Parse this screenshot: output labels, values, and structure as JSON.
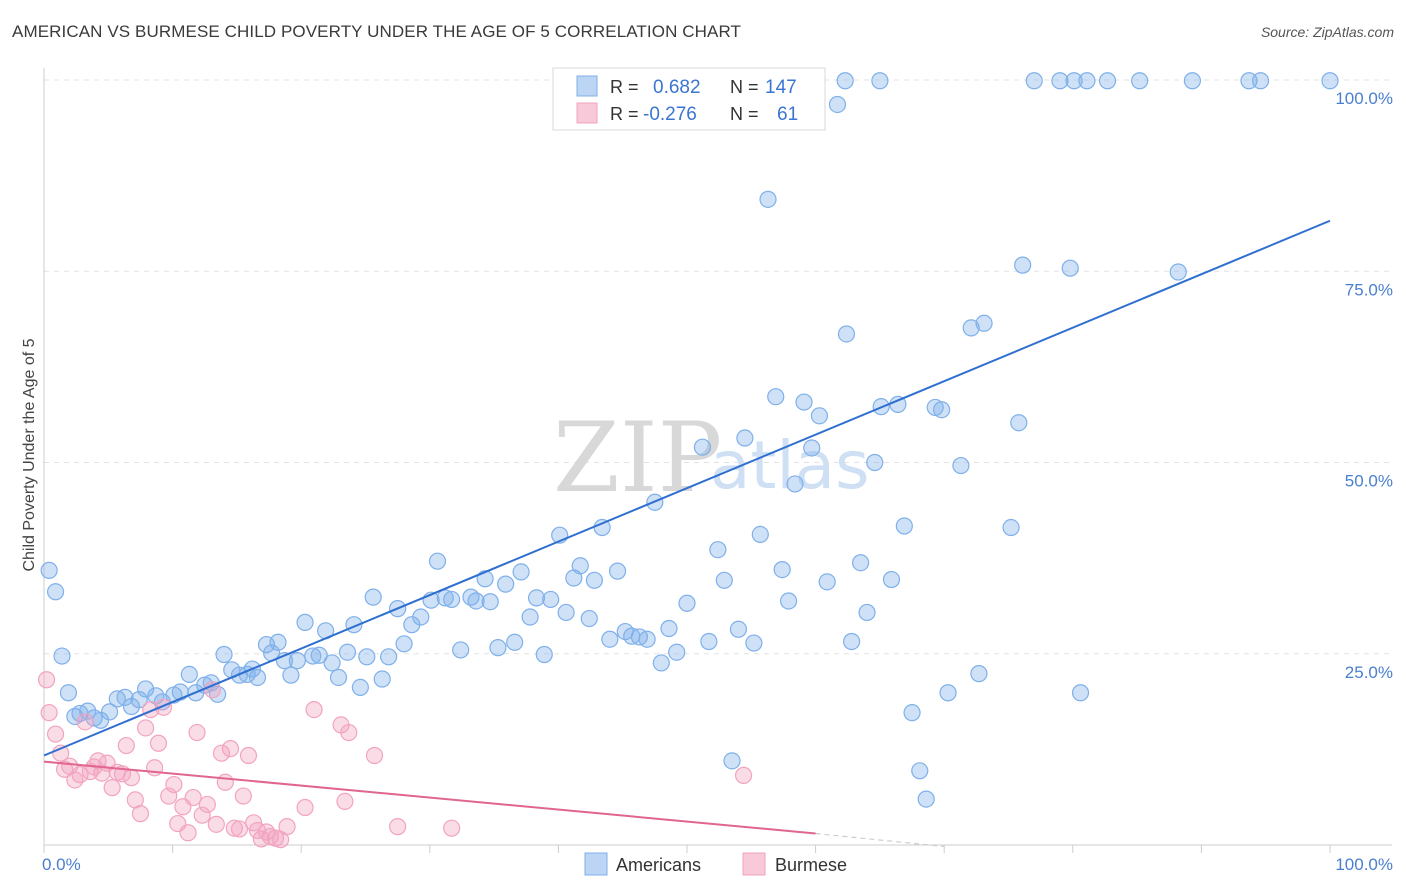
{
  "title": "AMERICAN VS BURMESE CHILD POVERTY UNDER THE AGE OF 5 CORRELATION CHART",
  "source": "Source: ZipAtlas.com",
  "watermark": {
    "zip": "ZIP",
    "atlas": "atlas"
  },
  "legend_box": {
    "rows": [
      {
        "r_label": "R =",
        "r_value": "0.682",
        "n_label": "N =",
        "n_value": "147",
        "color": "#7fb0ea"
      },
      {
        "r_label": "R =",
        "r_value": "-0.276",
        "n_label": "N =",
        "n_value": "61",
        "color": "#f2a4bf"
      }
    ]
  },
  "bottom_legend": [
    {
      "label": "Americans",
      "color": "#7fb0ea"
    },
    {
      "label": "Burmese",
      "color": "#f2a4bf"
    }
  ],
  "chart_data": {
    "type": "scatter",
    "ylabel": "Child Poverty Under the Age of 5",
    "xlabel": "",
    "xlim": [
      0,
      100
    ],
    "ylim": [
      0,
      100
    ],
    "x_tick_labels": [
      {
        "value": 0,
        "label": "0.0%"
      },
      {
        "value": 100,
        "label": "100.0%"
      }
    ],
    "y_tick_labels": [
      {
        "value": 25,
        "label": "25.0%"
      },
      {
        "value": 50,
        "label": "50.0%"
      },
      {
        "value": 75,
        "label": "75.0%"
      },
      {
        "value": 100,
        "label": "100.0%"
      }
    ],
    "grid": true,
    "series": [
      {
        "name": "Americans",
        "color": "#7fb0ea",
        "line_color": "#2f6fd0",
        "trend": {
          "x": [
            0,
            100
          ],
          "y": [
            11.7,
            81.6
          ]
        },
        "points": [
          [
            0.4,
            35.9
          ],
          [
            0.9,
            33.1
          ],
          [
            1.4,
            24.7
          ],
          [
            1.9,
            19.9
          ],
          [
            2.4,
            16.8
          ],
          [
            2.8,
            17.2
          ],
          [
            3.4,
            17.5
          ],
          [
            3.9,
            16.6
          ],
          [
            4.4,
            16.3
          ],
          [
            5.1,
            17.4
          ],
          [
            5.7,
            19.1
          ],
          [
            6.3,
            19.3
          ],
          [
            6.8,
            18.1
          ],
          [
            7.4,
            19.0
          ],
          [
            7.9,
            20.4
          ],
          [
            8.7,
            19.5
          ],
          [
            9.2,
            18.7
          ],
          [
            10.1,
            19.6
          ],
          [
            10.6,
            20.0
          ],
          [
            11.3,
            22.3
          ],
          [
            11.8,
            19.9
          ],
          [
            12.5,
            20.9
          ],
          [
            13.0,
            21.2
          ],
          [
            13.5,
            19.7
          ],
          [
            14.0,
            24.9
          ],
          [
            14.6,
            22.9
          ],
          [
            15.2,
            22.2
          ],
          [
            15.8,
            22.3
          ],
          [
            16.2,
            23.0
          ],
          [
            16.6,
            21.9
          ],
          [
            17.3,
            26.2
          ],
          [
            17.7,
            25.1
          ],
          [
            18.2,
            26.5
          ],
          [
            18.7,
            24.1
          ],
          [
            19.2,
            22.2
          ],
          [
            19.7,
            24.1
          ],
          [
            20.3,
            29.1
          ],
          [
            20.9,
            24.7
          ],
          [
            21.4,
            24.8
          ],
          [
            21.9,
            28.0
          ],
          [
            22.4,
            23.8
          ],
          [
            22.9,
            21.9
          ],
          [
            23.6,
            25.2
          ],
          [
            24.1,
            28.8
          ],
          [
            24.6,
            20.6
          ],
          [
            25.1,
            24.6
          ],
          [
            25.6,
            32.4
          ],
          [
            26.3,
            21.7
          ],
          [
            26.8,
            24.6
          ],
          [
            27.5,
            30.9
          ],
          [
            28.0,
            26.3
          ],
          [
            28.6,
            28.8
          ],
          [
            29.3,
            29.8
          ],
          [
            30.1,
            32.0
          ],
          [
            30.6,
            37.1
          ],
          [
            31.2,
            32.3
          ],
          [
            31.7,
            32.1
          ],
          [
            32.4,
            25.5
          ],
          [
            33.2,
            32.4
          ],
          [
            33.6,
            31.9
          ],
          [
            34.3,
            34.8
          ],
          [
            34.7,
            31.8
          ],
          [
            35.3,
            25.8
          ],
          [
            35.9,
            34.1
          ],
          [
            36.6,
            26.5
          ],
          [
            37.1,
            35.7
          ],
          [
            37.8,
            29.8
          ],
          [
            38.3,
            32.3
          ],
          [
            38.9,
            24.9
          ],
          [
            39.4,
            32.1
          ],
          [
            40.1,
            40.5
          ],
          [
            40.6,
            30.4
          ],
          [
            41.2,
            34.9
          ],
          [
            41.7,
            36.5
          ],
          [
            42.4,
            29.6
          ],
          [
            42.8,
            34.6
          ],
          [
            43.4,
            41.5
          ],
          [
            44.0,
            26.9
          ],
          [
            44.6,
            35.8
          ],
          [
            45.2,
            27.9
          ],
          [
            45.7,
            27.3
          ],
          [
            46.3,
            27.2
          ],
          [
            46.9,
            26.9
          ],
          [
            47.5,
            44.8
          ],
          [
            48.0,
            23.8
          ],
          [
            48.6,
            28.3
          ],
          [
            49.2,
            25.2
          ],
          [
            50.0,
            31.6
          ],
          [
            49.2,
            96.9
          ],
          [
            50.6,
            96.5
          ],
          [
            51.2,
            52.0
          ],
          [
            51.7,
            26.6
          ],
          [
            52.4,
            38.6
          ],
          [
            52.9,
            34.6
          ],
          [
            53.5,
            11.0
          ],
          [
            54.0,
            28.2
          ],
          [
            54.5,
            53.2
          ],
          [
            55.2,
            26.4
          ],
          [
            55.7,
            40.6
          ],
          [
            56.3,
            84.4
          ],
          [
            56.9,
            58.6
          ],
          [
            57.4,
            36.0
          ],
          [
            57.9,
            31.9
          ],
          [
            58.4,
            47.2
          ],
          [
            59.1,
            57.9
          ],
          [
            59.7,
            51.9
          ],
          [
            60.3,
            56.1
          ],
          [
            60.9,
            34.4
          ],
          [
            61.7,
            96.8
          ],
          [
            62.4,
            66.8
          ],
          [
            62.8,
            26.6
          ],
          [
            63.5,
            36.9
          ],
          [
            64.0,
            30.4
          ],
          [
            64.6,
            50.0
          ],
          [
            65.1,
            57.3
          ],
          [
            65.9,
            34.7
          ],
          [
            66.4,
            57.6
          ],
          [
            66.9,
            41.7
          ],
          [
            67.5,
            17.3
          ],
          [
            68.1,
            9.7
          ],
          [
            68.6,
            6.0
          ],
          [
            69.3,
            57.2
          ],
          [
            69.8,
            56.9
          ],
          [
            70.3,
            19.9
          ],
          [
            71.3,
            49.6
          ],
          [
            72.7,
            22.4
          ],
          [
            72.1,
            67.6
          ],
          [
            73.1,
            68.2
          ],
          [
            75.2,
            41.5
          ],
          [
            77.0,
            99.9
          ],
          [
            79.0,
            99.9
          ],
          [
            80.1,
            99.9
          ],
          [
            75.8,
            55.2
          ],
          [
            76.1,
            75.8
          ],
          [
            79.8,
            75.4
          ],
          [
            81.1,
            99.9
          ],
          [
            82.7,
            99.9
          ],
          [
            85.2,
            99.9
          ],
          [
            80.6,
            19.9
          ],
          [
            88.2,
            74.9
          ],
          [
            89.3,
            99.9
          ],
          [
            94.6,
            99.9
          ],
          [
            100.0,
            99.9
          ],
          [
            93.7,
            99.9
          ],
          [
            60.0,
            99.9
          ],
          [
            62.3,
            99.9
          ],
          [
            65.0,
            99.9
          ]
        ]
      },
      {
        "name": "Burmese",
        "color": "#f2a4bf",
        "line_color": "#e0658f",
        "trend": {
          "x": [
            0,
            60.0
          ],
          "y": [
            10.9,
            1.5
          ]
        },
        "trend_dashed": {
          "x": [
            60.0,
            70.0
          ],
          "y": [
            1.5,
            -0.2
          ]
        },
        "points": [
          [
            0.2,
            21.6
          ],
          [
            0.4,
            17.3
          ],
          [
            0.9,
            14.5
          ],
          [
            1.3,
            12.0
          ],
          [
            1.6,
            9.9
          ],
          [
            2.0,
            10.3
          ],
          [
            2.4,
            8.5
          ],
          [
            2.8,
            9.2
          ],
          [
            3.2,
            16.1
          ],
          [
            3.6,
            9.6
          ],
          [
            3.9,
            10.2
          ],
          [
            4.2,
            11.0
          ],
          [
            4.5,
            9.4
          ],
          [
            4.9,
            10.7
          ],
          [
            5.3,
            7.5
          ],
          [
            5.7,
            9.5
          ],
          [
            6.1,
            9.3
          ],
          [
            6.4,
            13.0
          ],
          [
            6.8,
            8.8
          ],
          [
            7.1,
            5.9
          ],
          [
            7.5,
            4.1
          ],
          [
            7.9,
            15.3
          ],
          [
            8.3,
            17.7
          ],
          [
            8.6,
            10.1
          ],
          [
            8.9,
            13.3
          ],
          [
            9.3,
            18.0
          ],
          [
            9.7,
            6.4
          ],
          [
            10.1,
            7.9
          ],
          [
            10.4,
            2.8
          ],
          [
            10.8,
            5.0
          ],
          [
            11.2,
            1.6
          ],
          [
            11.6,
            6.2
          ],
          [
            11.9,
            14.7
          ],
          [
            12.3,
            3.9
          ],
          [
            12.7,
            5.3
          ],
          [
            13.1,
            20.3
          ],
          [
            13.4,
            2.7
          ],
          [
            13.8,
            12.0
          ],
          [
            14.1,
            8.2
          ],
          [
            14.5,
            12.6
          ],
          [
            14.8,
            2.2
          ],
          [
            15.2,
            2.1
          ],
          [
            15.5,
            6.4
          ],
          [
            15.9,
            11.7
          ],
          [
            16.3,
            2.9
          ],
          [
            16.6,
            1.9
          ],
          [
            16.9,
            0.8
          ],
          [
            17.3,
            1.7
          ],
          [
            17.6,
            1.1
          ],
          [
            18.0,
            0.9
          ],
          [
            18.4,
            0.7
          ],
          [
            18.9,
            2.4
          ],
          [
            20.3,
            4.9
          ],
          [
            21.0,
            17.7
          ],
          [
            23.1,
            15.7
          ],
          [
            23.4,
            5.7
          ],
          [
            23.7,
            14.7
          ],
          [
            25.7,
            11.7
          ],
          [
            27.5,
            2.4
          ],
          [
            31.7,
            2.2
          ],
          [
            54.4,
            9.1
          ]
        ]
      }
    ]
  }
}
